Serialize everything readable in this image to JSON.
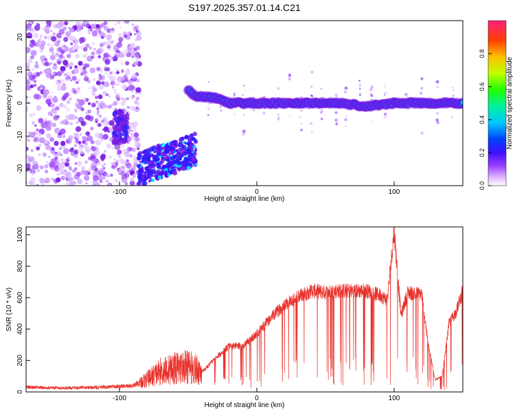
{
  "title": "S197.2025.357.01.14.C21",
  "chart_data": [
    {
      "type": "heatmap",
      "xlabel": "Height of straight line (km)",
      "ylabel": "Frequency (Hz)",
      "xlim": [
        -168,
        150
      ],
      "ylim": [
        -25,
        25
      ],
      "x_ticks": [
        -100,
        0,
        100
      ],
      "y_ticks": [
        -20,
        -10,
        0,
        10,
        20
      ],
      "colorbar": {
        "label": "Normalized spectral amplitude",
        "range": [
          0,
          1
        ],
        "ticks": [
          "0.0",
          "0.2",
          "0.4",
          "0.6",
          "0.8"
        ],
        "tick_values": [
          0,
          0.2,
          0.4,
          0.6,
          0.8
        ]
      },
      "track": [
        {
          "x": -50,
          "y": 4
        },
        {
          "x": -45,
          "y": 2
        },
        {
          "x": -38,
          "y": 2
        },
        {
          "x": -30,
          "y": 1.5
        },
        {
          "x": -20,
          "y": 0
        },
        {
          "x": -10,
          "y": 0
        },
        {
          "x": 0,
          "y": 0
        },
        {
          "x": 20,
          "y": 0
        },
        {
          "x": 40,
          "y": 0
        },
        {
          "x": 60,
          "y": 0
        },
        {
          "x": 80,
          "y": -1
        },
        {
          "x": 100,
          "y": 0
        },
        {
          "x": 120,
          "y": 0
        },
        {
          "x": 150,
          "y": 0
        }
      ],
      "colors": {
        "noise": "#8a2be2",
        "core": "#ff2060",
        "mid": "#00e8ff",
        "low": "#2020ff"
      }
    },
    {
      "type": "line",
      "xlabel": "Height of straight line (km)",
      "ylabel": "SNR (10 * v/v)",
      "xlim": [
        -168,
        150
      ],
      "ylim": [
        0,
        1050
      ],
      "x_ticks": [
        -100,
        0,
        100
      ],
      "y_ticks": [
        0,
        200,
        400,
        600,
        800,
        1000
      ],
      "color": "#e8302a",
      "series": [
        {
          "x": [
            -168,
            -140,
            -110,
            -90,
            -80,
            -70,
            -60,
            -50,
            -40,
            -30,
            -20,
            -10,
            0,
            10,
            20,
            30,
            40,
            50,
            60,
            70,
            80,
            90,
            95,
            100,
            105,
            110,
            115,
            120,
            125,
            130,
            135,
            140,
            145,
            150
          ],
          "values": [
            30,
            25,
            30,
            40,
            80,
            130,
            150,
            160,
            130,
            220,
            300,
            300,
            380,
            480,
            570,
            620,
            660,
            650,
            660,
            660,
            660,
            630,
            600,
            1050,
            500,
            650,
            640,
            640,
            300,
            80,
            100,
            450,
            520,
            660
          ]
        }
      ]
    }
  ]
}
